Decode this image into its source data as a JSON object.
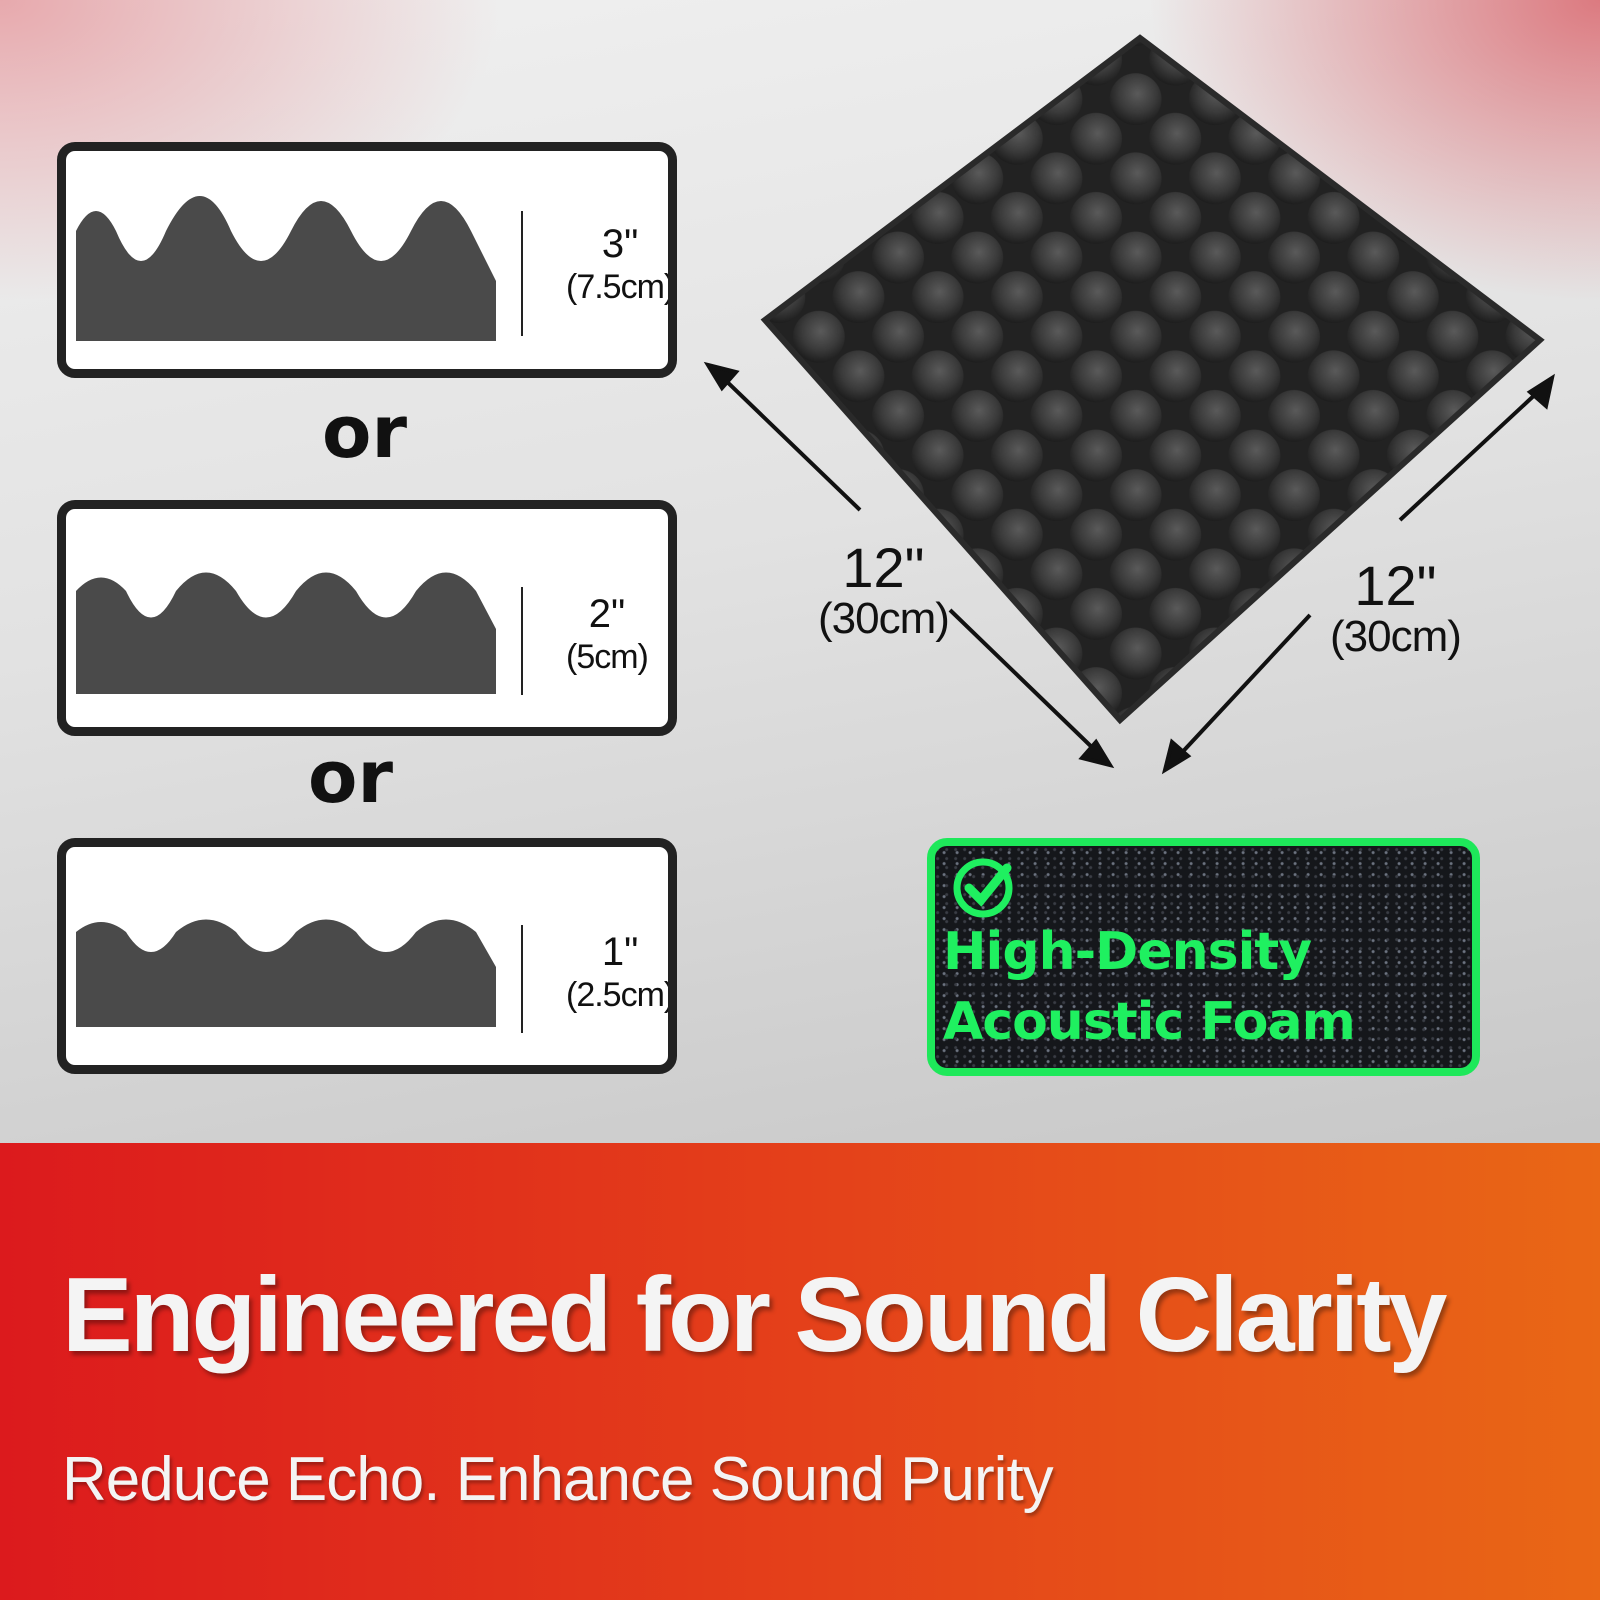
{
  "thickness_options": [
    {
      "inches": "3\"",
      "cm": "(7.5cm)"
    },
    {
      "inches": "2\"",
      "cm": "(5cm)"
    },
    {
      "inches": "1\"",
      "cm": "(2.5cm)"
    }
  ],
  "or_label": "or",
  "panel_size": {
    "width_in": "12\"",
    "width_cm": "(30cm)",
    "length_in": "12\"",
    "length_cm": "(30cm)"
  },
  "feature_badge": {
    "icon": "check-circle-icon",
    "line1": "High-Density",
    "line2": "Acoustic Foam",
    "color": "#1ee85a"
  },
  "banner": {
    "headline": "Engineered for Sound Clarity",
    "subline": "Reduce Echo. Enhance Sound Purity",
    "gradient": [
      "#dc1a1d",
      "#e96716"
    ]
  }
}
